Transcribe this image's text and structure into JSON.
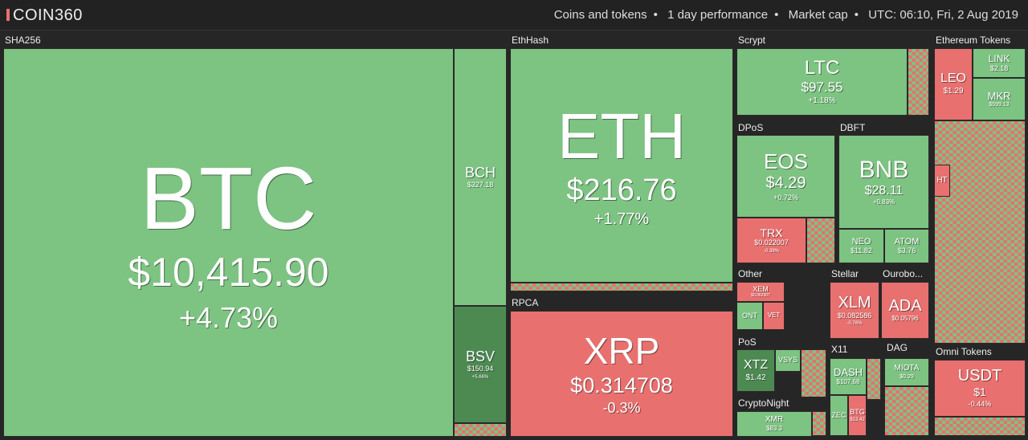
{
  "header": {
    "logo": "COIN360",
    "items": [
      "Coins and tokens",
      "1 day performance",
      "Market cap",
      "UTC: 06:10, Fri, 2 Aug 2019"
    ]
  },
  "groups": [
    "SHA256",
    "EthHash",
    "RPCA",
    "Scrypt",
    "DPoS",
    "DBFT",
    "Other",
    "Stellar",
    "Ourobo...",
    "PoS",
    "X11",
    "DAG",
    "CryptoNight",
    "Ethereum Tokens",
    "Omni Tokens"
  ],
  "coins": [
    {
      "symbol": "BTC",
      "price": "$10,415.90",
      "change": "+4.73%"
    },
    {
      "symbol": "BCH",
      "price": "$327.18"
    },
    {
      "symbol": "BSV",
      "price": "$150.94",
      "change": "+5.66%"
    },
    {
      "symbol": "ETH",
      "price": "$216.76",
      "change": "+1.77%"
    },
    {
      "symbol": "XRP",
      "price": "$0.314708",
      "change": "-0.3%"
    },
    {
      "symbol": "LTC",
      "price": "$97.55",
      "change": "+1.18%"
    },
    {
      "symbol": "EOS",
      "price": "$4.29",
      "change": "+0.72%"
    },
    {
      "symbol": "TRX",
      "price": "$0.022007",
      "change": "-0.39%"
    },
    {
      "symbol": "BNB",
      "price": "$28.11",
      "change": "+0.83%"
    },
    {
      "symbol": "NEO",
      "price": "$11.82"
    },
    {
      "symbol": "ATOM",
      "price": "$3.76"
    },
    {
      "symbol": "XEM",
      "price": "$0.062907"
    },
    {
      "symbol": "ONT"
    },
    {
      "symbol": "VET"
    },
    {
      "symbol": "XLM",
      "price": "$0.082586",
      "change": "-0.76%"
    },
    {
      "symbol": "ADA",
      "price": "$0.05796"
    },
    {
      "symbol": "XTZ",
      "price": "$1.42"
    },
    {
      "symbol": "VSYS"
    },
    {
      "symbol": "DASH",
      "price": "$107.68"
    },
    {
      "symbol": "BTG",
      "price": "$13.42"
    },
    {
      "symbol": "ZEC"
    },
    {
      "symbol": "MIOTA",
      "price": "$0.29"
    },
    {
      "symbol": "XMR",
      "price": "$83.3"
    },
    {
      "symbol": "LEO",
      "price": "$1.29"
    },
    {
      "symbol": "LINK",
      "price": "$2.18"
    },
    {
      "symbol": "MKR",
      "price": "$599.13"
    },
    {
      "symbol": "HT"
    },
    {
      "symbol": "USDT",
      "price": "$1",
      "change": "-0.44%"
    }
  ]
}
